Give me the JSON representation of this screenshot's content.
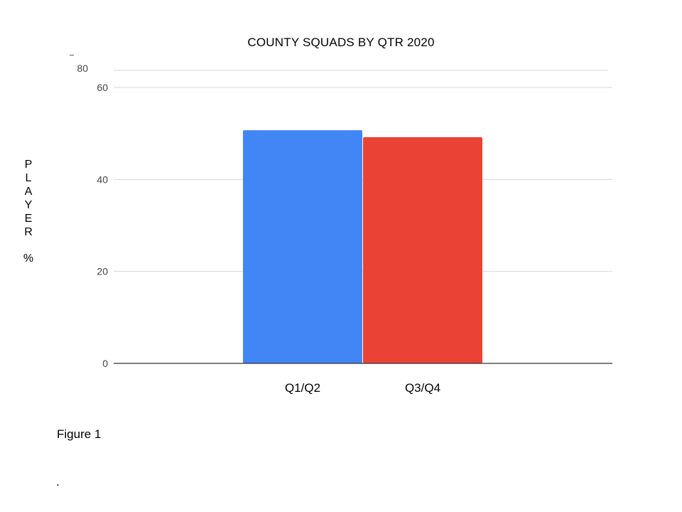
{
  "chart_data": {
    "type": "bar",
    "title": "COUNTY SQUADS BY QTR 2020",
    "xlabel": "",
    "ylabel": "PLAYER %",
    "ylabel_letters": [
      "P",
      "L",
      "A",
      "Y",
      "E",
      "R"
    ],
    "ylabel_unit": "%",
    "categories": [
      "Q1/Q2",
      "Q3/Q4"
    ],
    "values": [
      50.7,
      49.2
    ],
    "colors": [
      "#4285f4",
      "#ea4335"
    ],
    "ylim": [
      0,
      60
    ],
    "yticks": [
      0,
      20,
      40,
      60
    ],
    "yticks_extra": [
      80
    ],
    "grid": true,
    "legend": "none"
  },
  "caption": "Figure 1",
  "trailing_text": "."
}
